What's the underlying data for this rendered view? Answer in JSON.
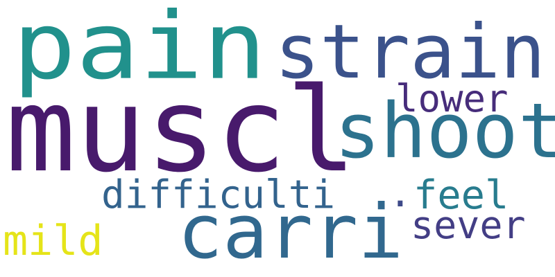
{
  "word_cloud": {
    "words": [
      {
        "text": "pain",
        "color": "#21918c"
      },
      {
        "text": "muscl",
        "color": "#481a6c"
      },
      {
        "text": "strain",
        "color": "#3b528b"
      },
      {
        "text": "shoot",
        "color": "#2c728e"
      },
      {
        "text": "carri",
        "color": "#31688e"
      },
      {
        "text": "lower",
        "color": "#472d7b"
      },
      {
        "text": "difficulti",
        "color": "#33638d"
      },
      {
        "text": "feel",
        "color": "#287c8e"
      },
      {
        "text": "sever",
        "color": "#433e85"
      },
      {
        "text": "mild",
        "color": "#e5e419"
      },
      {
        "text": ".",
        "color": "#3e4a89"
      }
    ]
  }
}
